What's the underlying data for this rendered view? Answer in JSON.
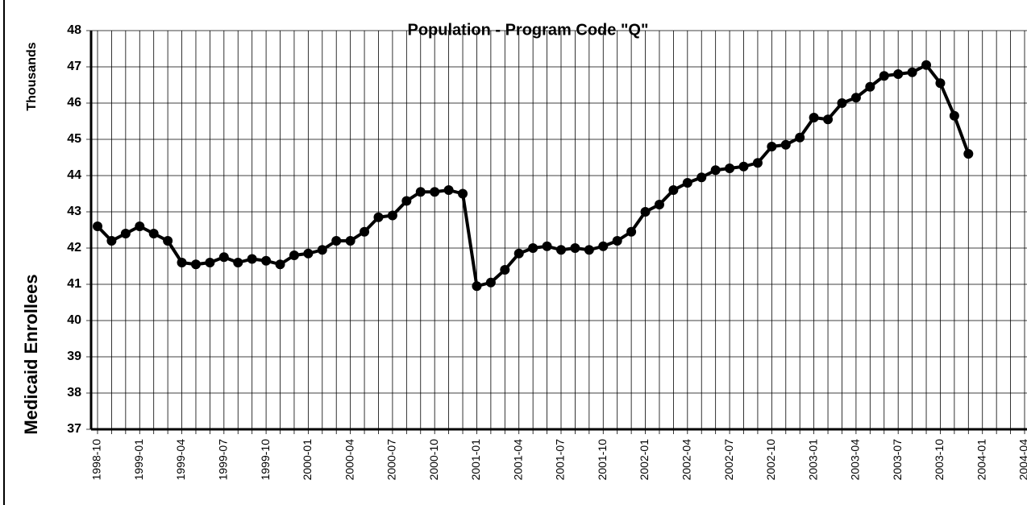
{
  "chart_data": {
    "type": "line",
    "title": "Population - Program Code \"Q\"",
    "y_label": "Medicaid Enrollees",
    "y_unit_label": "Thousands",
    "categories": [
      "1998-10",
      null,
      null,
      "1999-01",
      null,
      null,
      "1999-04",
      null,
      null,
      "1999-07",
      null,
      null,
      "1999-10",
      null,
      null,
      "2000-01",
      null,
      null,
      "2000-04",
      null,
      null,
      "2000-07",
      null,
      null,
      "2000-10",
      null,
      null,
      "2001-01",
      null,
      null,
      "2001-04",
      null,
      null,
      "2001-07",
      null,
      null,
      "2001-10",
      null,
      null,
      "2002-01",
      null,
      null,
      "2002-04",
      null,
      null,
      "2002-07",
      null,
      null,
      "2002-10",
      null,
      null,
      "2003-01",
      null,
      null,
      "2003-04",
      null,
      null,
      "2003-07",
      null,
      null,
      "2003-10",
      null,
      null,
      "2004-01",
      null,
      null,
      "2004-04"
    ],
    "series": [
      {
        "name": "Medicaid Enrollees",
        "color": "#000000",
        "values": [
          42.6,
          42.2,
          42.4,
          42.6,
          42.4,
          42.2,
          41.6,
          41.55,
          41.6,
          41.75,
          41.6,
          41.7,
          41.65,
          41.55,
          41.8,
          41.85,
          41.95,
          42.2,
          42.2,
          42.45,
          42.85,
          42.9,
          43.3,
          43.55,
          43.55,
          43.6,
          43.5,
          40.95,
          41.05,
          41.4,
          41.85,
          42.0,
          42.05,
          41.95,
          42.0,
          41.95,
          42.05,
          42.2,
          42.45,
          43.0,
          43.2,
          43.6,
          43.8,
          43.95,
          44.15,
          44.2,
          44.25,
          44.35,
          44.8,
          44.85,
          45.05,
          45.6,
          45.55,
          46.0,
          46.15,
          46.45,
          46.75,
          46.8,
          46.85,
          47.05,
          46.55,
          45.65,
          44.6,
          null,
          null,
          null,
          null
        ]
      }
    ],
    "ylim": [
      37,
      48
    ],
    "yticks": [
      37,
      38,
      39,
      40,
      41,
      42,
      43,
      44,
      45,
      46,
      47,
      48
    ],
    "grid": true
  }
}
